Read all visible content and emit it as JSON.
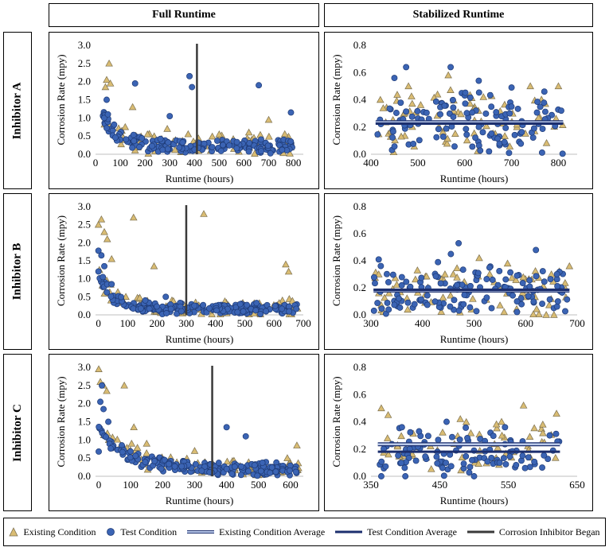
{
  "columns": [
    "Full Runtime",
    "Stabilized Runtime"
  ],
  "rows": [
    "Inhibitor A",
    "Inhibitor B",
    "Inhibitor C"
  ],
  "legend": [
    {
      "label": "Existing Condition",
      "icon": "triangle-marker-icon"
    },
    {
      "label": "Test Condition",
      "icon": "circle-marker-icon"
    },
    {
      "label": "Existing Condition Average",
      "icon": "double-line-icon"
    },
    {
      "label": "Test Condition Average",
      "icon": "solid-line-icon"
    },
    {
      "label": "Corrosion Inhibitor Began",
      "icon": "dark-line-icon"
    }
  ],
  "colors": {
    "existing_fill": "#d9bc73",
    "existing_stroke": "#7c7050",
    "test_fill": "#3b64b4",
    "test_stroke": "#1e3a75",
    "existing_avg": "#b9c8e8",
    "test_avg": "#1c2f6e",
    "inhibitor_line": "#3a3a3a"
  },
  "chart_data": [
    {
      "id": "A-full",
      "type": "scatter",
      "xlabel": "Runtime (hours)",
      "ylabel": "Corrosion Rate (mpy)",
      "xlim": [
        0,
        840
      ],
      "xticks": [
        0,
        100,
        200,
        300,
        400,
        500,
        600,
        700,
        800
      ],
      "ylim": [
        0,
        3.0
      ],
      "yticks": [
        "0.0",
        "0.5",
        "1.0",
        "1.5",
        "2.0",
        "2.5",
        "3.0"
      ],
      "inhibitor_began": 410,
      "x_start": 30,
      "x_end": 800,
      "existing": {
        "points": [
          [
            55,
            2.5
          ],
          [
            45,
            2.05
          ],
          [
            40,
            1.85
          ],
          [
            150,
            1.3
          ],
          [
            60,
            1.95
          ],
          [
            290,
            0.7
          ],
          [
            700,
            0.95
          ],
          [
            500,
            0.55
          ],
          [
            620,
            0.6
          ],
          [
            210,
            0.55
          ],
          [
            100,
            0.6
          ],
          [
            120,
            0.75
          ]
        ]
      },
      "test": {
        "points": [
          [
            380,
            2.15
          ],
          [
            390,
            1.85
          ],
          [
            160,
            1.95
          ],
          [
            660,
            1.9
          ],
          [
            790,
            1.15
          ],
          [
            45,
            1.5
          ],
          [
            35,
            1.0
          ],
          [
            50,
            1.1
          ],
          [
            300,
            1.05
          ]
        ]
      },
      "seeds": {
        "test": {
          "n": 185,
          "decay": 0.9,
          "tau": 60,
          "base": 0.22,
          "noise": 0.18
        },
        "existing": {
          "n": 70,
          "decay": 0.8,
          "tau": 70,
          "base": 0.25,
          "noise": 0.3
        }
      }
    },
    {
      "id": "A-stable",
      "type": "scatter",
      "xlabel": "Runtime (hours)",
      "ylabel": "Corrosion Rate (mpy)",
      "xlim": [
        400,
        840
      ],
      "xticks": [
        400,
        500,
        600,
        700,
        800
      ],
      "ylim": [
        0,
        0.8
      ],
      "yticks": [
        "0.0",
        "0.2",
        "0.4",
        "0.6",
        "0.8"
      ],
      "x_start": 410,
      "x_end": 810,
      "averages": {
        "existing": 0.235,
        "test": 0.225
      },
      "existing": {
        "points": [
          [
            480,
            0.5
          ],
          [
            565,
            0.58
          ],
          [
            800,
            0.5
          ],
          [
            740,
            0.5
          ],
          [
            420,
            0.4
          ],
          [
            640,
            0.42
          ]
        ]
      },
      "test": {
        "points": [
          [
            475,
            0.64
          ],
          [
            570,
            0.64
          ],
          [
            450,
            0.56
          ],
          [
            630,
            0.54
          ],
          [
            700,
            0.49
          ],
          [
            770,
            0.46
          ]
        ]
      },
      "seeds": {
        "test": {
          "n": 120,
          "decay": 0,
          "tau": 1,
          "base": 0.23,
          "noise": 0.22
        },
        "existing": {
          "n": 75,
          "decay": 0,
          "tau": 1,
          "base": 0.23,
          "noise": 0.22
        }
      }
    },
    {
      "id": "B-full",
      "type": "scatter",
      "xlabel": "Runtime (hours)",
      "ylabel": "Corrosion Rate (mpy)",
      "xlim": [
        -10,
        700
      ],
      "xticks": [
        0,
        100,
        200,
        300,
        400,
        500,
        600,
        700
      ],
      "ylim": [
        0,
        3.0
      ],
      "yticks": [
        "0.0",
        "0.5",
        "1.0",
        "1.5",
        "2.0",
        "2.5",
        "3.0"
      ],
      "inhibitor_began": 300,
      "x_start": 0,
      "x_end": 680,
      "existing": {
        "points": [
          [
            10,
            2.65
          ],
          [
            0,
            2.5
          ],
          [
            120,
            2.7
          ],
          [
            360,
            2.8
          ],
          [
            640,
            1.4
          ],
          [
            650,
            1.2
          ],
          [
            20,
            2.3
          ],
          [
            30,
            2.1
          ],
          [
            190,
            1.35
          ],
          [
            45,
            1.55
          ]
        ]
      },
      "test": {
        "points": [
          [
            0,
            1.78
          ],
          [
            10,
            1.65
          ],
          [
            20,
            1.35
          ],
          [
            15,
            1.05
          ],
          [
            30,
            0.85
          ],
          [
            45,
            0.85
          ],
          [
            160,
            0.4
          ],
          [
            230,
            0.5
          ]
        ]
      },
      "seeds": {
        "test": {
          "n": 200,
          "decay": 0.9,
          "tau": 50,
          "base": 0.17,
          "noise": 0.15
        },
        "existing": {
          "n": 75,
          "decay": 0.9,
          "tau": 60,
          "base": 0.2,
          "noise": 0.25
        }
      }
    },
    {
      "id": "B-stable",
      "type": "scatter",
      "xlabel": "Runtime (hours)",
      "ylabel": "Corrosion Rate (mpy)",
      "xlim": [
        300,
        700
      ],
      "xticks": [
        300,
        400,
        500,
        600,
        700
      ],
      "ylim": [
        0,
        0.8
      ],
      "yticks": [
        "0.0",
        "0.2",
        "0.4",
        "0.6",
        "0.8"
      ],
      "x_start": 305,
      "x_end": 685,
      "averages": {
        "existing": 0.18,
        "test": 0.185
      },
      "existing": {
        "points": [
          [
            510,
            0.42
          ],
          [
            565,
            0.38
          ],
          [
            685,
            0.36
          ],
          [
            315,
            0.3
          ],
          [
            650,
            0.3
          ],
          [
            640,
            0.0
          ],
          [
            655,
            0.0
          ]
        ]
      },
      "test": {
        "points": [
          [
            470,
            0.53
          ],
          [
            455,
            0.45
          ],
          [
            620,
            0.48
          ],
          [
            315,
            0.41
          ],
          [
            530,
            0.35
          ],
          [
            430,
            0.39
          ]
        ]
      },
      "seeds": {
        "test": {
          "n": 130,
          "decay": 0,
          "tau": 1,
          "base": 0.18,
          "noise": 0.17
        },
        "existing": {
          "n": 70,
          "decay": 0,
          "tau": 1,
          "base": 0.17,
          "noise": 0.18
        }
      }
    },
    {
      "id": "C-full",
      "type": "scatter",
      "xlabel": "Runtime (hours)",
      "ylabel": "Corrosion Rate (mpy)",
      "xlim": [
        -10,
        640
      ],
      "xticks": [
        0,
        100,
        200,
        300,
        400,
        500,
        600
      ],
      "ylim": [
        0,
        3.0
      ],
      "yticks": [
        "0.0",
        "0.5",
        "1.0",
        "1.5",
        "2.0",
        "2.5",
        "3.0"
      ],
      "inhibitor_began": 355,
      "x_start": 0,
      "x_end": 625,
      "existing": {
        "points": [
          [
            0,
            2.95
          ],
          [
            5,
            2.6
          ],
          [
            15,
            2.5
          ],
          [
            80,
            2.5
          ],
          [
            25,
            2.35
          ],
          [
            110,
            1.35
          ],
          [
            620,
            0.85
          ],
          [
            590,
            0.5
          ],
          [
            300,
            0.7
          ],
          [
            150,
            0.9
          ]
        ]
      },
      "test": {
        "points": [
          [
            10,
            2.5
          ],
          [
            5,
            2.05
          ],
          [
            15,
            1.85
          ],
          [
            30,
            1.5
          ],
          [
            400,
            1.35
          ],
          [
            460,
            1.1
          ],
          [
            0,
            0.68
          ]
        ]
      },
      "seeds": {
        "test": {
          "n": 200,
          "decay": 1.1,
          "tau": 90,
          "base": 0.2,
          "noise": 0.18
        },
        "existing": {
          "n": 70,
          "decay": 1.0,
          "tau": 100,
          "base": 0.25,
          "noise": 0.25
        }
      }
    },
    {
      "id": "C-stable",
      "type": "scatter",
      "xlabel": "Runtime (hours)",
      "ylabel": "Corrosion Rate (mpy)",
      "xlim": [
        350,
        650
      ],
      "xticks": [
        350,
        450,
        550,
        650
      ],
      "ylim": [
        0,
        0.8
      ],
      "yticks": [
        "0.0",
        "0.2",
        "0.4",
        "0.6",
        "0.8"
      ],
      "x_start": 360,
      "x_end": 625,
      "averages": {
        "existing": 0.235,
        "test": 0.18
      },
      "existing": {
        "points": [
          [
            572,
            0.52
          ],
          [
            365,
            0.5
          ],
          [
            620,
            0.46
          ],
          [
            480,
            0.42
          ],
          [
            375,
            0.45
          ],
          [
            540,
            0.4
          ],
          [
            600,
            0.38
          ]
        ]
      },
      "test": {
        "points": [
          [
            460,
            0.4
          ],
          [
            395,
            0.36
          ],
          [
            545,
            0.36
          ],
          [
            610,
            0.3
          ],
          [
            420,
            0.33
          ],
          [
            500,
            0.0
          ],
          [
            400,
            0.0
          ],
          [
            365,
            0.0
          ]
        ]
      },
      "seeds": {
        "test": {
          "n": 100,
          "decay": 0,
          "tau": 1,
          "base": 0.18,
          "noise": 0.16
        },
        "existing": {
          "n": 55,
          "decay": 0,
          "tau": 1,
          "base": 0.22,
          "noise": 0.17
        }
      }
    }
  ]
}
